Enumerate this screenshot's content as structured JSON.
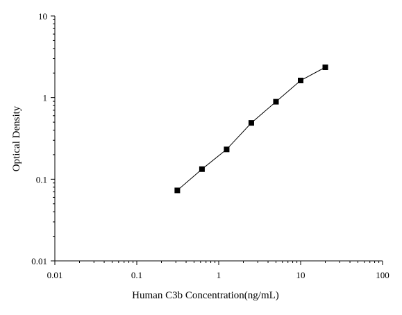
{
  "chart_data": {
    "type": "scatter",
    "title": "",
    "xlabel": "Human C3b Concentration(ng/mL)",
    "ylabel": "Optical Density",
    "x_scale": "log",
    "y_scale": "log",
    "xlim": [
      0.01,
      100
    ],
    "ylim": [
      0.01,
      10
    ],
    "x_ticks": [
      0.01,
      0.1,
      1,
      10,
      100
    ],
    "x_tick_labels": [
      "0.01",
      "0.1",
      "1",
      "10",
      "100"
    ],
    "y_ticks": [
      0.01,
      0.1,
      1,
      10
    ],
    "y_tick_labels": [
      "0.01",
      "0.1",
      "1",
      "10"
    ],
    "grid": false,
    "line_connected": true,
    "marker": "square",
    "color": "#000000",
    "series": [
      {
        "x": [
          0.3125,
          0.625,
          1.25,
          2.5,
          5,
          10,
          20
        ],
        "y": [
          0.073,
          0.133,
          0.232,
          0.49,
          0.89,
          1.62,
          2.35
        ]
      }
    ]
  }
}
